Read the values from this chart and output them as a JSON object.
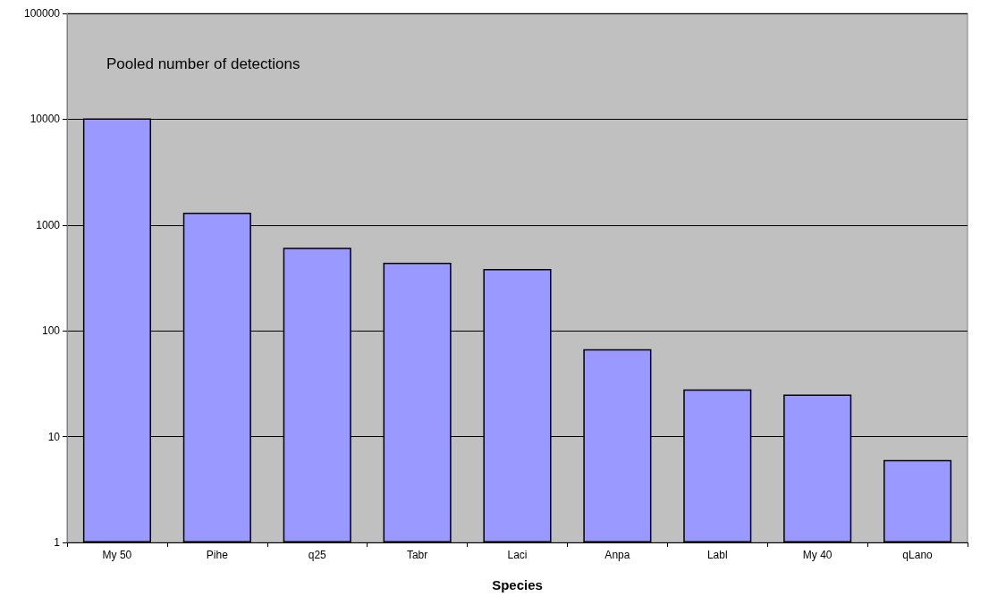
{
  "chart_data": {
    "type": "bar",
    "title": "Pooled number of detections",
    "xlabel": "Species",
    "categories": [
      "My 50",
      "Pihe",
      "q25",
      "Tabr",
      "Laci",
      "Anpa",
      "Labl",
      "My 40",
      "qLano"
    ],
    "values": [
      10200,
      1310,
      610,
      440,
      385,
      67,
      28,
      25,
      6
    ],
    "color": "#9999ff",
    "log": true,
    "ylim": [
      1,
      100000
    ],
    "yticks": [
      1,
      10,
      100,
      1000,
      10000,
      100000
    ],
    "grid": "y"
  }
}
